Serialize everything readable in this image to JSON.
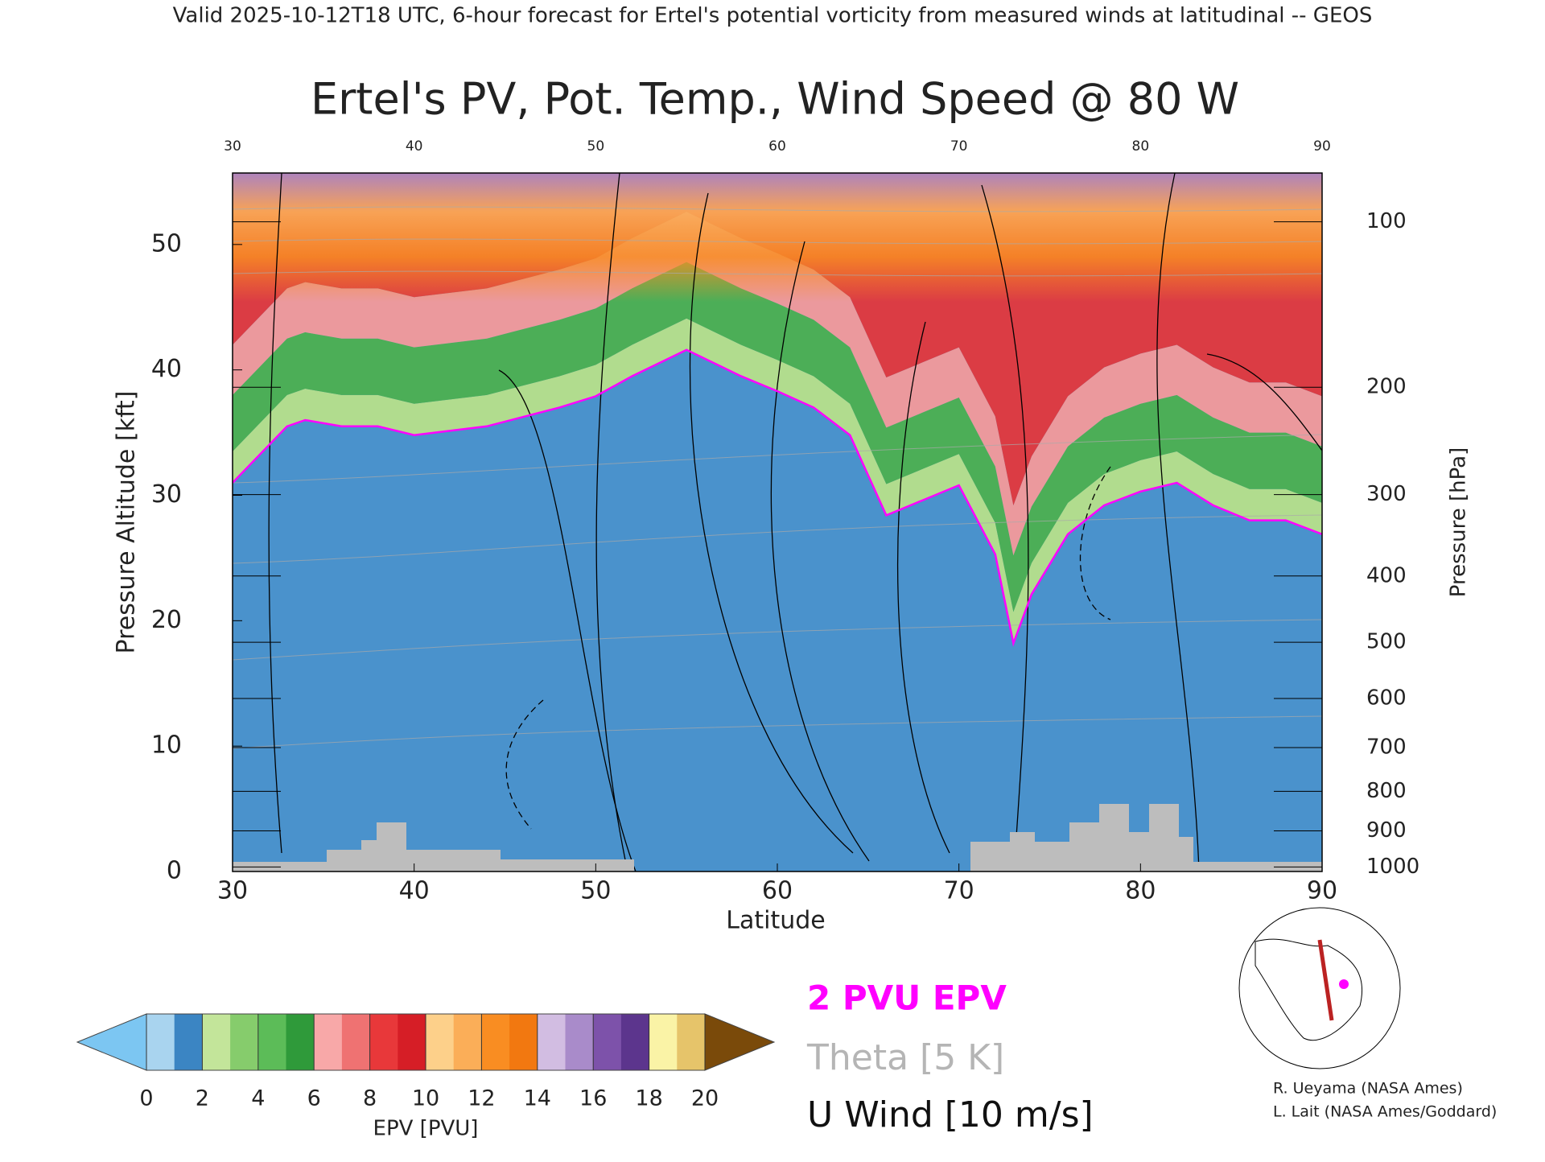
{
  "chart_data": {
    "type": "cross-section",
    "header": "Valid 2025-10-12T18 UTC, 6-hour forecast for Ertel's potential vorticity from measured winds at latitudinal -- GEOS",
    "title": "Ertel's PV, Pot. Temp., Wind Speed @ 80 W",
    "x_label": "Latitude",
    "y_label": "Pressure Altitude [kft]",
    "y2_label": "Pressure [hPa]",
    "xlim": [
      30,
      90
    ],
    "xticks": [
      30,
      40,
      50,
      60,
      70,
      80,
      90
    ],
    "ylim": [
      0,
      55.7
    ],
    "yticks": [
      0,
      10,
      20,
      30,
      40,
      50
    ],
    "y2lim": [
      1013,
      80
    ],
    "y2scale": "standard-atmosphere",
    "y2ticks": [
      100,
      200,
      300,
      400,
      500,
      600,
      700,
      800,
      900,
      1000
    ],
    "series": [
      {
        "name": "2 PVU EPV",
        "color": "#ff00ff",
        "x": [
          30,
          33,
          34,
          36,
          38,
          40,
          44,
          48,
          50,
          52,
          55,
          58,
          60,
          62,
          64,
          66,
          68,
          70,
          72,
          73,
          74,
          76,
          78,
          80,
          82,
          84,
          86,
          88,
          90
        ],
        "values": [
          31,
          35.5,
          36,
          35.5,
          35.5,
          34.8,
          35.5,
          37,
          37.9,
          39.5,
          41.6,
          39.5,
          38.3,
          37,
          34.8,
          28.4,
          29.6,
          30.8,
          25.3,
          18.2,
          22.1,
          26.9,
          29.2,
          30.3,
          31,
          29.2,
          28,
          28,
          26.9
        ]
      }
    ],
    "legend": [
      "2 PVU EPV",
      "Theta [5 K]",
      "U Wind [10 m/s]"
    ],
    "colorbar": {
      "label": "EPV [PVU]",
      "ticks": [
        0,
        2,
        4,
        6,
        8,
        10,
        12,
        14,
        16,
        18,
        20
      ],
      "under_color": "#7cc6f2",
      "over_color": "#7a4a0a",
      "colors": [
        "#a9d4ef",
        "#3b85c3",
        "#c3e59a",
        "#86cc6c",
        "#5cbc58",
        "#2f9a3a",
        "#f8a8a8",
        "#ef7272",
        "#e8383a",
        "#d61e26",
        "#fdd08a",
        "#fbae58",
        "#f98d22",
        "#f27810",
        "#d2bde2",
        "#a98bca",
        "#7d52aa",
        "#5c358d",
        "#faf3a6",
        "#e6c46a"
      ]
    },
    "credits": [
      "R. Ueyama (NASA Ames)",
      "L. Lait (NASA Ames/Goddard)"
    ]
  }
}
